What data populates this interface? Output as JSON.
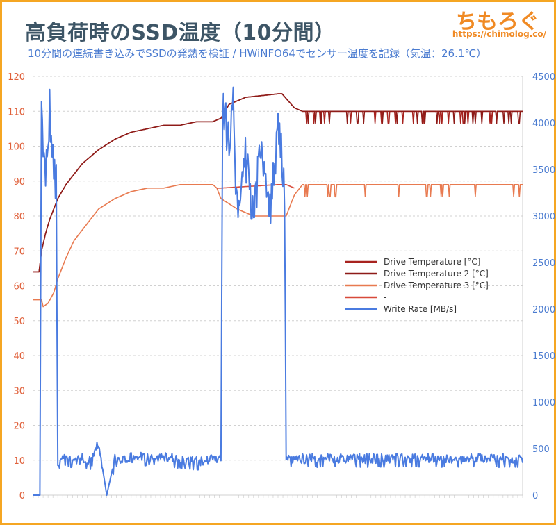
{
  "header": {
    "title": "高負荷時のSSD温度（10分間）",
    "subtitle": "10分間の連続書き込みでSSDの発熱を検証 / HWiNFO64でセンサー温度を記録（気温：26.1℃）",
    "logo_text": "ちもろぐ",
    "logo_url": "https://chimolog.co/"
  },
  "chart_data": {
    "type": "line",
    "title": "高負荷時のSSD温度（10分間）",
    "subtitle": "10分間の連続書き込みでSSDの発熱を検証 / HWiNFO64でセンサー温度を記録（気温：26.1℃）",
    "xlabel": "",
    "ylabel": "",
    "y_left": {
      "min": 0,
      "max": 120,
      "step": 10,
      "ticks": [
        "0",
        "10",
        "20",
        "30",
        "40",
        "50",
        "60",
        "70",
        "80",
        "90",
        "100",
        "110",
        "120"
      ]
    },
    "y_right": {
      "min": 0,
      "max": 4500,
      "step": 500,
      "ticks": [
        "0",
        "500",
        "1000",
        "1500",
        "2000",
        "2500",
        "3000",
        "3500",
        "4000",
        "4500"
      ]
    },
    "grid": "horizontal dashed",
    "legend_position": "center-right",
    "x_samples": 600,
    "series": [
      {
        "name": "Drive Temperature [°C]",
        "axis": "left",
        "color": "#a8231f",
        "keyframes": [
          [
            0,
            64
          ],
          [
            7,
            64
          ],
          [
            10,
            70
          ],
          [
            15,
            75
          ],
          [
            20,
            79
          ],
          [
            30,
            85
          ],
          [
            40,
            89
          ],
          [
            50,
            92
          ],
          [
            60,
            95
          ],
          [
            70,
            97
          ],
          [
            80,
            99
          ],
          [
            100,
            102
          ],
          [
            120,
            104
          ],
          [
            140,
            105
          ],
          [
            160,
            106
          ],
          [
            180,
            106
          ],
          [
            200,
            107
          ],
          [
            220,
            107
          ],
          [
            230,
            108
          ],
          [
            235,
            110
          ],
          [
            240,
            112
          ],
          [
            260,
            114
          ],
          [
            300,
            115
          ],
          [
            305,
            115
          ],
          [
            320,
            111
          ],
          [
            330,
            110
          ],
          [
            600,
            110
          ]
        ]
      },
      {
        "name": "Drive Temperature 2 [°C]",
        "axis": "left",
        "color": "#8e1b18",
        "keyframes": [
          [
            0,
            64
          ],
          [
            7,
            64
          ],
          [
            10,
            70
          ],
          [
            15,
            75
          ],
          [
            20,
            79
          ],
          [
            30,
            85
          ],
          [
            40,
            89
          ],
          [
            50,
            92
          ],
          [
            60,
            95
          ],
          [
            70,
            97
          ],
          [
            80,
            99
          ],
          [
            100,
            102
          ],
          [
            120,
            104
          ],
          [
            140,
            105
          ],
          [
            160,
            106
          ],
          [
            180,
            106
          ],
          [
            200,
            107
          ],
          [
            220,
            107
          ],
          [
            230,
            108
          ],
          [
            235,
            110
          ],
          [
            240,
            112
          ],
          [
            260,
            114
          ],
          [
            300,
            115
          ],
          [
            305,
            115
          ],
          [
            320,
            111
          ],
          [
            330,
            110
          ],
          [
            600,
            110
          ]
        ]
      },
      {
        "name": "Drive Temperature 3 [°C]",
        "axis": "left",
        "color": "#e87a50",
        "keyframes": [
          [
            0,
            56
          ],
          [
            10,
            56
          ],
          [
            12,
            54
          ],
          [
            18,
            55
          ],
          [
            25,
            58
          ],
          [
            30,
            62
          ],
          [
            40,
            68
          ],
          [
            50,
            73
          ],
          [
            60,
            76
          ],
          [
            70,
            79
          ],
          [
            80,
            82
          ],
          [
            100,
            85
          ],
          [
            120,
            87
          ],
          [
            140,
            88
          ],
          [
            160,
            88
          ],
          [
            180,
            89
          ],
          [
            220,
            89
          ],
          [
            225,
            88
          ],
          [
            230,
            85
          ],
          [
            250,
            82
          ],
          [
            270,
            80
          ],
          [
            300,
            80
          ],
          [
            310,
            80
          ],
          [
            320,
            86
          ],
          [
            330,
            89
          ],
          [
            600,
            89
          ]
        ]
      },
      {
        "name": "-",
        "axis": "left",
        "color": "#d84a3a",
        "keyframes": [
          [
            225,
            88
          ],
          [
            230,
            88
          ],
          [
            300,
            89
          ],
          [
            310,
            89
          ],
          [
            320,
            88
          ]
        ]
      },
      {
        "name": "Write Rate [MB/s]",
        "axis": "right",
        "color": "#4a7be0",
        "keyframes": [
          [
            0,
            0
          ],
          [
            8,
            0
          ],
          [
            10,
            4100
          ],
          [
            15,
            3300
          ],
          [
            20,
            4150
          ],
          [
            25,
            3500
          ],
          [
            28,
            3400
          ],
          [
            30,
            330
          ],
          [
            40,
            420
          ],
          [
            50,
            380
          ],
          [
            60,
            400
          ],
          [
            70,
            370
          ],
          [
            80,
            560
          ],
          [
            90,
            0
          ],
          [
            100,
            400
          ],
          [
            150,
            420
          ],
          [
            200,
            370
          ],
          [
            230,
            400
          ],
          [
            232,
            4150
          ],
          [
            240,
            3800
          ],
          [
            245,
            4150
          ],
          [
            250,
            3000
          ],
          [
            260,
            3600
          ],
          [
            270,
            3000
          ],
          [
            280,
            3800
          ],
          [
            290,
            3000
          ],
          [
            300,
            3900
          ],
          [
            305,
            3600
          ],
          [
            308,
            3300
          ],
          [
            310,
            400
          ],
          [
            600,
            400
          ]
        ]
      }
    ]
  }
}
